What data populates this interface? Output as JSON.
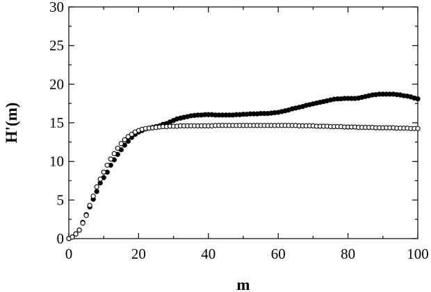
{
  "chart_data": {
    "type": "scatter",
    "title": "",
    "xlabel": "m",
    "ylabel": "H'(m)",
    "xlim": [
      0,
      100
    ],
    "ylim": [
      0,
      30
    ],
    "x_ticks": [
      "0",
      "20",
      "40",
      "60",
      "80",
      "100"
    ],
    "y_ticks": [
      "0",
      "5",
      "10",
      "15",
      "20",
      "25",
      "30"
    ],
    "grid": false,
    "legend": "none",
    "x": [
      0,
      1,
      2,
      3,
      4,
      5,
      6,
      7,
      8,
      9,
      10,
      11,
      12,
      13,
      14,
      15,
      16,
      17,
      18,
      19,
      20,
      21,
      22,
      23,
      24,
      25,
      26,
      27,
      28,
      29,
      30,
      31,
      32,
      33,
      34,
      35,
      36,
      37,
      38,
      39,
      40,
      41,
      42,
      43,
      44,
      45,
      46,
      47,
      48,
      49,
      50,
      51,
      52,
      53,
      54,
      55,
      56,
      57,
      58,
      59,
      60,
      61,
      62,
      63,
      64,
      65,
      66,
      67,
      68,
      69,
      70,
      71,
      72,
      73,
      74,
      75,
      76,
      77,
      78,
      79,
      80,
      81,
      82,
      83,
      84,
      85,
      86,
      87,
      88,
      89,
      90,
      91,
      92,
      93,
      94,
      95,
      96,
      97,
      98,
      99,
      100
    ],
    "series": [
      {
        "marker": "filled",
        "color": "#000000",
        "values": [
          0.0,
          0.2,
          0.6,
          1.1,
          2.1,
          3.1,
          4.1,
          5.1,
          6.1,
          7.2,
          7.9,
          8.6,
          9.5,
          10.2,
          10.9,
          11.5,
          12.1,
          12.6,
          13.1,
          13.5,
          13.8,
          14.0,
          14.2,
          14.3,
          14.4,
          14.5,
          14.6,
          14.8,
          14.9,
          15.1,
          15.3,
          15.5,
          15.6,
          15.7,
          15.8,
          15.9,
          15.95,
          16.0,
          16.0,
          16.05,
          16.05,
          16.05,
          16.0,
          16.0,
          16.0,
          16.0,
          16.0,
          16.0,
          16.05,
          16.05,
          16.1,
          16.1,
          16.15,
          16.15,
          16.15,
          16.2,
          16.2,
          16.2,
          16.25,
          16.3,
          16.35,
          16.45,
          16.55,
          16.65,
          16.8,
          16.9,
          17.0,
          17.1,
          17.25,
          17.35,
          17.45,
          17.55,
          17.65,
          17.75,
          17.85,
          17.95,
          18.05,
          18.1,
          18.1,
          18.15,
          18.15,
          18.15,
          18.15,
          18.2,
          18.3,
          18.4,
          18.5,
          18.6,
          18.65,
          18.7,
          18.7,
          18.7,
          18.7,
          18.7,
          18.65,
          18.6,
          18.5,
          18.45,
          18.35,
          18.2,
          18.1
        ]
      },
      {
        "marker": "open",
        "color": "#000000",
        "values": [
          0.0,
          0.2,
          0.6,
          1.1,
          2.0,
          3.0,
          4.3,
          5.5,
          6.7,
          7.7,
          8.6,
          9.5,
          10.3,
          11.0,
          11.7,
          12.3,
          12.8,
          13.2,
          13.5,
          13.8,
          14.0,
          14.15,
          14.25,
          14.3,
          14.35,
          14.4,
          14.45,
          14.5,
          14.5,
          14.55,
          14.55,
          14.55,
          14.6,
          14.6,
          14.6,
          14.6,
          14.6,
          14.6,
          14.6,
          14.6,
          14.6,
          14.6,
          14.65,
          14.65,
          14.65,
          14.65,
          14.65,
          14.65,
          14.65,
          14.65,
          14.65,
          14.65,
          14.65,
          14.65,
          14.65,
          14.65,
          14.65,
          14.65,
          14.65,
          14.65,
          14.65,
          14.65,
          14.65,
          14.65,
          14.65,
          14.65,
          14.6,
          14.6,
          14.6,
          14.6,
          14.6,
          14.55,
          14.55,
          14.55,
          14.55,
          14.5,
          14.5,
          14.5,
          14.5,
          14.45,
          14.45,
          14.45,
          14.45,
          14.4,
          14.4,
          14.4,
          14.4,
          14.4,
          14.35,
          14.35,
          14.35,
          14.35,
          14.35,
          14.35,
          14.3,
          14.3,
          14.3,
          14.3,
          14.25,
          14.25,
          14.25
        ]
      }
    ]
  }
}
